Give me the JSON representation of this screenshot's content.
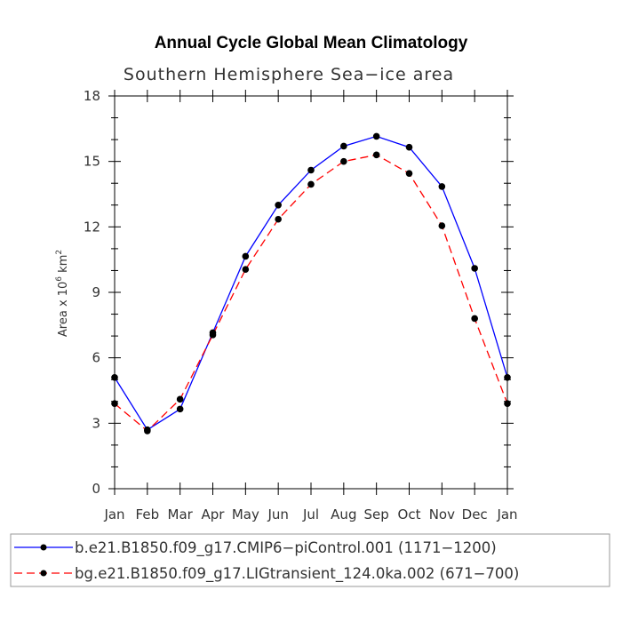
{
  "chart_data": {
    "type": "line",
    "title": "Annual Cycle Global Mean Climatology",
    "subtitle": "Southern Hemisphere Sea−ice area",
    "ylabel": {
      "prefix": "Area x 10",
      "exponent1": "6",
      "unit": " km",
      "exponent2": "2"
    },
    "xlabel": "",
    "categories": [
      "Jan",
      "Feb",
      "Mar",
      "Apr",
      "May",
      "Jun",
      "Jul",
      "Aug",
      "Sep",
      "Oct",
      "Nov",
      "Dec",
      "Jan"
    ],
    "ylim": [
      0,
      18
    ],
    "yticks": [
      0,
      3,
      6,
      9,
      12,
      15,
      18
    ],
    "series": [
      {
        "name": "b.e21.B1850.f09_g17.CMIP6−piControl.001 (1171−1200)",
        "color": "#0000ff",
        "line_style": "solid",
        "marker": "filled-circle",
        "values": [
          5.1,
          2.7,
          3.65,
          7.15,
          10.65,
          13.0,
          14.6,
          15.7,
          16.15,
          15.65,
          13.85,
          10.1,
          5.1
        ]
      },
      {
        "name": "bg.e21.B1850.f09_g17.LIGtransient_124.0ka.002 (671−700)",
        "color": "#ff0000",
        "line_style": "dashed",
        "marker": "filled-circle",
        "values": [
          3.9,
          2.65,
          4.1,
          7.05,
          10.05,
          12.35,
          13.95,
          15.0,
          15.3,
          14.45,
          12.05,
          7.8,
          3.9
        ]
      }
    ],
    "grid": false,
    "legend_position": "bottom"
  }
}
